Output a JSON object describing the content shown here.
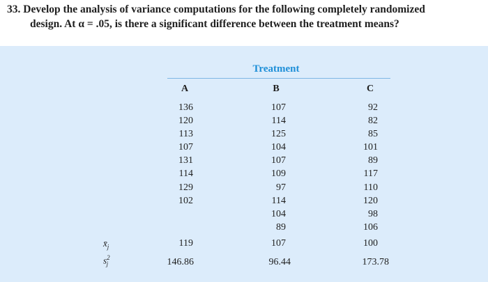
{
  "problem": {
    "line1": "33. Develop the analysis of variance computations for the following completely randomized",
    "line2": "design. At α = .05, is there a significant difference between the treatment means?"
  },
  "table": {
    "title": "Treatment",
    "headers": [
      "A",
      "B",
      "C"
    ],
    "columns": {
      "A": [
        "136",
        "120",
        "113",
        "107",
        "131",
        "114",
        "129",
        "102"
      ],
      "B": [
        "107",
        "114",
        "125",
        "104",
        "107",
        "109",
        "97",
        "114",
        "104",
        "89"
      ],
      "C": [
        "92",
        "82",
        "85",
        "101",
        "89",
        "117",
        "110",
        "120",
        "98",
        "106"
      ]
    },
    "stats": {
      "mean_label": "x̄",
      "mean_sub": "j",
      "var_label": "s",
      "var_sub": "j",
      "var_sup": "2",
      "means": [
        "119",
        "107",
        "100"
      ],
      "variances": [
        "146.86",
        "96.44",
        "173.78"
      ]
    }
  }
}
